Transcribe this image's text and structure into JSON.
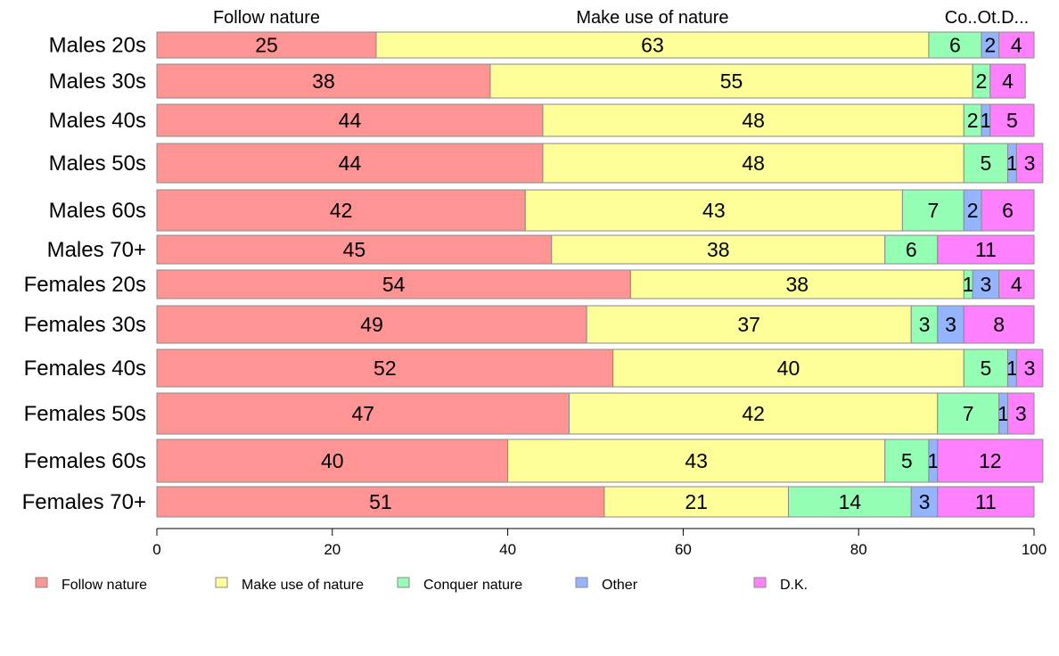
{
  "chart_data": {
    "type": "bar",
    "orientation": "horizontal",
    "stacked": true,
    "xlim": [
      0,
      100
    ],
    "xticks": [
      0,
      20,
      40,
      60,
      80,
      100
    ],
    "top_labels": [
      "Follow nature",
      "Make use of nature",
      "Co..Ot.D..."
    ],
    "categories": [
      "Males 20s",
      "Males 30s",
      "Males 40s",
      "Males 50s",
      "Males 60s",
      "Males 70+",
      "Females 20s",
      "Females 30s",
      "Females 40s",
      "Females 50s",
      "Females 60s",
      "Females 70+"
    ],
    "series": [
      {
        "name": "Follow nature",
        "color": "#ff9494",
        "values": [
          25,
          38,
          44,
          44,
          42,
          45,
          54,
          49,
          52,
          47,
          40,
          51
        ]
      },
      {
        "name": "Make use of nature",
        "color": "#ffff99",
        "values": [
          63,
          55,
          48,
          48,
          43,
          38,
          38,
          37,
          40,
          42,
          43,
          21
        ]
      },
      {
        "name": "Conquer nature",
        "color": "#94ffb4",
        "values": [
          6,
          2,
          2,
          5,
          7,
          6,
          1,
          3,
          5,
          7,
          5,
          14
        ]
      },
      {
        "name": "Other",
        "color": "#94b4ff",
        "values": [
          2,
          0,
          1,
          1,
          2,
          0,
          3,
          3,
          1,
          1,
          1,
          3
        ]
      },
      {
        "name": "D.K.",
        "color": "#ff80ff",
        "values": [
          4,
          4,
          5,
          3,
          6,
          11,
          4,
          8,
          3,
          3,
          12,
          11
        ]
      }
    ],
    "legend_position": "bottom"
  }
}
